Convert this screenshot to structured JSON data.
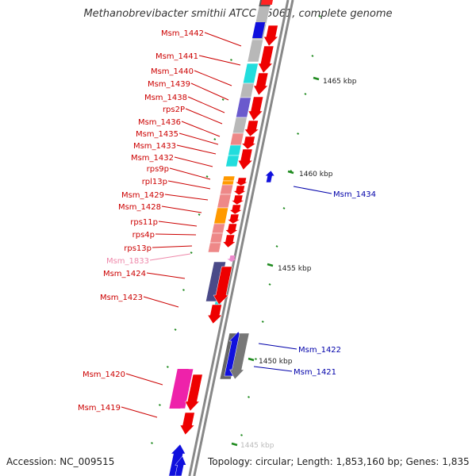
{
  "title": "Methanobrevibacter smithii ATCC 35061, complete genome",
  "footer": {
    "accession": "Accession: NC_009515",
    "summary": "Topology: circular; Length: 1,853,160 bp; Genes: 1,835"
  },
  "scale_labels": [
    "1465 kbp",
    "1460 kbp",
    "1455 kbp",
    "1450 kbp",
    "1445 kbp"
  ],
  "gene_labels": {
    "left": [
      "Msm_1442",
      "Msm_1441",
      "Msm_1440",
      "Msm_1439",
      "Msm_1438",
      "rps2P",
      "Msm_1436",
      "Msm_1435",
      "Msm_1433",
      "Msm_1432",
      "rps9p",
      "rpl13p",
      "Msm_1429",
      "Msm_1428",
      "rps11p",
      "rps4p",
      "rps13p",
      "Msm_1833",
      "Msm_1424",
      "Msm_1423",
      "Msm_1420",
      "Msm_1419"
    ],
    "right": [
      "Msm_1434",
      "Msm_1422",
      "Msm_1421"
    ]
  },
  "colors": {
    "forward": "#ee0000",
    "reverse": "#1010dd",
    "label_forward": "#cc0000",
    "label_reverse": "#0000aa",
    "label_pink": "#ee88aa",
    "backbone": "#888888",
    "tick": "#1e8a1e",
    "cog_gray": "#b8b8b8",
    "cog_cyan": "#22dddd",
    "cog_purple": "#6a5acd",
    "cog_pink": "#ee8888",
    "cog_orange": "#ff9900",
    "cog_magenta": "#ee22aa",
    "cog_navy": "#4a4a88",
    "cog_dark": "#666666"
  }
}
